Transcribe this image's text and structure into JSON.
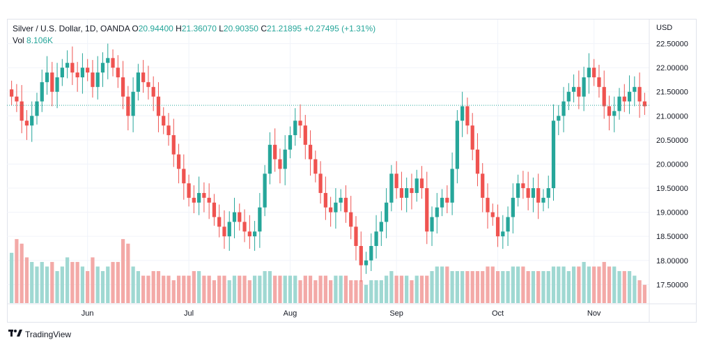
{
  "legend": {
    "symbol": "Silver / U.S. Dollar, 1D, OANDA",
    "o_label": "O",
    "o_value": "20.94400",
    "h_label": "H",
    "h_value": "21.36070",
    "l_label": "L",
    "l_value": "20.90350",
    "c_label": "C",
    "c_value": "21.21895",
    "change": "+0.27495 (+1.31%)",
    "vol_label": "Vol",
    "vol_value": "8.106K"
  },
  "axis": {
    "currency": "USD"
  },
  "brand": {
    "name": "TradingView"
  },
  "colors": {
    "up": "#26a69a",
    "down": "#ef5350",
    "up_vol": "#9fd8d2",
    "down_vol": "#f3a9a7",
    "grid": "#f0f3fa",
    "last_line": "#26a69a"
  },
  "chart_data": {
    "type": "candlestick",
    "title": "Silver / U.S. Dollar, 1D, OANDA",
    "ylabel": "USD",
    "ylim": [
      17.1,
      23.0
    ],
    "y_ticks": [
      "22.50000",
      "22.00000",
      "21.50000",
      "21.00000",
      "20.50000",
      "20.00000",
      "19.50000",
      "19.00000",
      "18.50000",
      "18.00000",
      "17.50000"
    ],
    "x_labels": [
      {
        "label": "Jun",
        "index": 15
      },
      {
        "label": "Jul",
        "index": 35
      },
      {
        "label": "Aug",
        "index": 55
      },
      {
        "label": "Sep",
        "index": 76
      },
      {
        "label": "Oct",
        "index": 96
      },
      {
        "label": "Nov",
        "index": 115
      }
    ],
    "last_close": 21.21895,
    "volume_max": 16,
    "closes": [
      21.4,
      21.3,
      20.9,
      20.8,
      21.0,
      21.3,
      21.7,
      21.9,
      21.5,
      21.8,
      22.0,
      22.1,
      21.9,
      21.8,
      22.0,
      21.9,
      21.6,
      21.9,
      22.1,
      22.2,
      22.0,
      21.8,
      21.4,
      21.0,
      21.5,
      21.9,
      21.7,
      21.6,
      21.4,
      21.0,
      20.8,
      20.6,
      20.2,
      19.9,
      19.6,
      19.3,
      19.2,
      19.4,
      19.3,
      19.2,
      18.9,
      18.7,
      18.5,
      18.8,
      19.0,
      18.8,
      18.6,
      18.5,
      18.6,
      19.1,
      19.8,
      20.4,
      20.1,
      19.9,
      20.3,
      20.6,
      20.9,
      20.8,
      20.4,
      20.1,
      19.8,
      19.4,
      19.1,
      19.0,
      19.2,
      19.3,
      19.0,
      18.7,
      18.3,
      17.9,
      18.0,
      18.3,
      18.6,
      18.8,
      19.2,
      19.8,
      19.5,
      19.3,
      19.5,
      19.4,
      19.7,
      19.5,
      18.6,
      18.9,
      19.1,
      19.3,
      19.2,
      19.9,
      20.9,
      21.2,
      20.8,
      20.3,
      19.8,
      19.3,
      19.0,
      18.9,
      18.5,
      18.6,
      18.9,
      19.3,
      19.6,
      19.5,
      19.3,
      19.5,
      19.2,
      19.3,
      19.5,
      20.9,
      21.0,
      21.3,
      21.5,
      21.6,
      21.4,
      21.8,
      22.0,
      21.8,
      21.6,
      21.2,
      21.0,
      21.1,
      21.4,
      21.3,
      21.5,
      21.6,
      21.3,
      21.2
    ],
    "volumes": [
      11,
      14,
      13,
      10,
      9,
      8,
      9,
      8,
      9,
      7,
      8,
      10,
      9,
      9,
      8,
      7,
      10,
      8,
      7,
      8,
      9,
      9,
      14,
      13,
      8,
      7,
      6,
      6,
      7,
      7,
      6,
      6,
      5,
      6,
      6,
      6,
      7,
      7,
      6,
      6,
      5,
      6,
      6,
      5,
      6,
      6,
      6,
      5,
      6,
      6,
      7,
      7,
      6,
      6,
      6,
      6,
      6,
      5,
      6,
      6,
      5,
      6,
      6,
      5,
      6,
      6,
      6,
      5,
      5,
      5,
      4,
      5,
      5,
      5,
      6,
      7,
      6,
      6,
      6,
      5,
      6,
      6,
      6,
      7,
      8,
      8,
      8,
      7,
      7,
      7,
      7,
      7,
      7,
      7,
      8,
      8,
      7,
      7,
      7,
      8,
      8,
      8,
      7,
      7,
      7,
      7,
      7,
      8,
      8,
      8,
      7,
      8,
      8,
      9,
      8,
      8,
      8,
      9,
      8,
      8,
      7,
      7,
      7,
      6,
      5,
      4
    ]
  }
}
